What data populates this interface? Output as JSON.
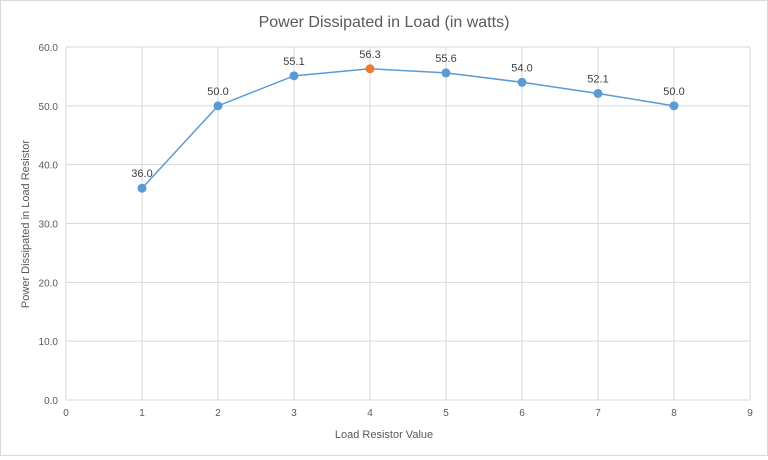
{
  "chart_data": {
    "type": "line",
    "title": "Power Dissipated in Load (in watts)",
    "xlabel": "Load Resistor Value",
    "ylabel": "Power Dissipated in Load Resistor",
    "xlim": [
      0,
      9
    ],
    "ylim": [
      0,
      60
    ],
    "xticks": [
      "0",
      "1",
      "2",
      "3",
      "4",
      "5",
      "6",
      "7",
      "8",
      "9"
    ],
    "yticks": [
      "0.0",
      "10.0",
      "20.0",
      "30.0",
      "40.0",
      "50.0",
      "60.0"
    ],
    "grid": true,
    "legend": "none",
    "x": [
      1,
      2,
      3,
      4,
      5,
      6,
      7,
      8
    ],
    "values": [
      36.0,
      50.0,
      55.1,
      56.3,
      55.6,
      54.0,
      52.1,
      50.0
    ],
    "data_labels": [
      "36.0",
      "50.0",
      "55.1",
      "56.3",
      "55.6",
      "54.0",
      "52.1",
      "50.0"
    ],
    "highlight_index": 3,
    "colors": {
      "series": "#5b9bd5",
      "highlight": "#ed7d31",
      "grid": "#d9d9d9",
      "text": "#595959"
    }
  }
}
